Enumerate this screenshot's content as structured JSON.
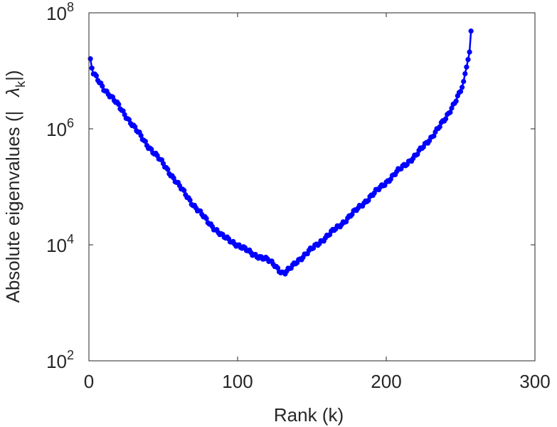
{
  "chart_data": {
    "type": "line",
    "xlabel": "Rank (k)",
    "ylabel_main": "Absolute eigenvalues (|",
    "ylabel_lambda": "λ",
    "ylabel_sub": "k",
    "ylabel_close": "|)",
    "y_scale": "log",
    "xlim": [
      0,
      300
    ],
    "ylim": [
      100,
      100000000
    ],
    "x_ticks": [
      {
        "value": 0,
        "label": "0"
      },
      {
        "value": 100,
        "label": "100"
      },
      {
        "value": 200,
        "label": "200"
      },
      {
        "value": 300,
        "label": "300"
      }
    ],
    "y_ticks": [
      {
        "value": 100,
        "base": "10",
        "exp": "2"
      },
      {
        "value": 10000,
        "base": "10",
        "exp": "4"
      },
      {
        "value": 1000000,
        "base": "10",
        "exp": "6"
      },
      {
        "value": 100000000,
        "base": "10",
        "exp": "8"
      }
    ],
    "grid": false,
    "line_color": "#0000ff",
    "marker": "circle",
    "curve_keypoints": {
      "x": [
        1,
        2,
        3,
        10,
        20,
        30,
        40,
        50,
        60,
        70,
        80,
        90,
        100,
        110,
        120,
        125,
        128,
        130,
        132,
        135,
        140,
        150,
        160,
        170,
        180,
        190,
        200,
        210,
        220,
        230,
        240,
        245,
        248,
        250,
        252,
        254,
        256,
        257
      ],
      "y": [
        15000000,
        11000000,
        9000000,
        5000000,
        2500000,
        1100000,
        500000,
        250000,
        110000,
        50000,
        25000,
        14000,
        10000,
        7000,
        5500,
        4500,
        3700,
        3300,
        3300,
        3800,
        5200,
        8500,
        14000,
        23000,
        40000,
        70000,
        120000,
        210000,
        350000,
        700000,
        1500000,
        2600000,
        3600000,
        4500000,
        6000000,
        12000000,
        20000000,
        50000000
      ]
    }
  }
}
